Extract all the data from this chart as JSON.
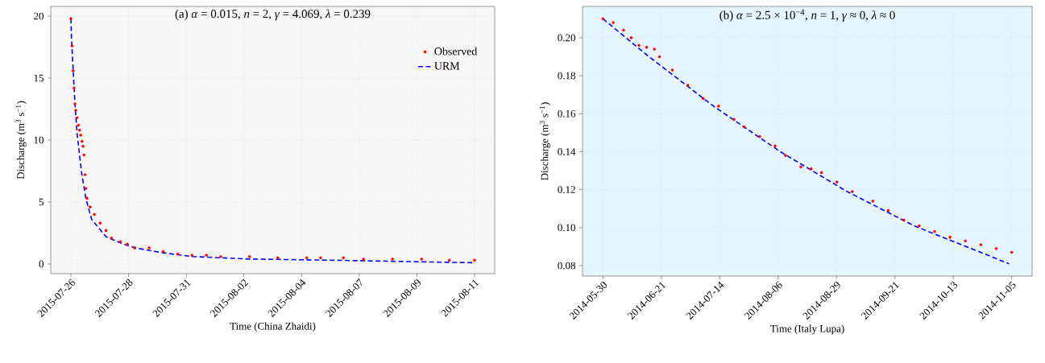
{
  "chart_data": [
    {
      "type": "line",
      "title": "(a)  *α* = 0.015, *n* = 2, *γ* = 4.069, *λ* = 0.239",
      "xlabel": "Time (China Zhaidi)",
      "ylabel": "Discharge (m$^{3}$ s$^{−1}$)",
      "xlim": [
        "2015-07-25T07:48",
        "2015-08-11T22:12"
      ],
      "ylim": [
        -0.78,
        20.78
      ],
      "xticks": [
        {
          "value": "2015-07-26T03:00",
          "label": "2015-07-26"
        },
        {
          "value": "2015-07-28T09:51",
          "label": "2015-07-28"
        },
        {
          "value": "2015-07-30T16:43",
          "label": "2015-07-31"
        },
        {
          "value": "2015-08-01T23:34",
          "label": "2015-08-02"
        },
        {
          "value": "2015-08-04T06:26",
          "label": "2015-08-04"
        },
        {
          "value": "2015-08-06T13:17",
          "label": "2015-08-07"
        },
        {
          "value": "2015-08-08T20:09",
          "label": "2015-08-09"
        },
        {
          "value": "2015-08-11T03:00",
          "label": "2015-08-11"
        }
      ],
      "yticks": [
        0,
        5,
        10,
        15,
        20
      ],
      "grid": true,
      "legend": "top right",
      "series": [
        {
          "name": "Observed",
          "type": "scatter",
          "marker": "circle",
          "color": "#ff0000",
          "x": [
            "2015-07-26T03:00",
            "2015-07-26T04:05",
            "2015-07-26T05:10",
            "2015-07-26T06:00",
            "2015-07-26T06:50",
            "2015-07-26T07:34",
            "2015-07-26T08:46",
            "2015-07-26T10:12",
            "2015-07-26T11:10",
            "2015-07-26T12:22",
            "2015-07-26T13:34",
            "2015-07-26T14:31",
            "2015-07-26T15:29",
            "2015-07-26T16:26",
            "2015-07-26T17:10",
            "2015-07-26T18:22",
            "2015-07-26T21:14",
            "2015-07-27T01:19",
            "2015-07-27T06:50",
            "2015-07-27T12:22",
            "2015-07-27T17:38",
            "2015-07-28T02:02",
            "2015-07-28T08:46",
            "2015-07-28T15:43",
            "2015-07-29T05:24",
            "2015-07-29T18:50",
            "2015-07-30T08:46",
            "2015-07-30T22:12",
            "2015-07-31T11:54",
            "2015-08-01T01:36",
            "2015-08-02T04:54",
            "2015-08-03T07:48",
            "2015-08-04T11:24",
            "2015-08-05T00:36",
            "2015-08-05T22:12",
            "2015-08-06T17:24",
            "2015-08-07T21:00",
            "2015-08-09T00:36",
            "2015-08-10T03:00",
            "2015-08-11T03:00"
          ],
          "values": [
            19.8,
            17.6,
            15.6,
            14.2,
            12.9,
            12.4,
            11.8,
            11.2,
            10.8,
            10.4,
            9.9,
            9.5,
            8.8,
            7.2,
            6.1,
            5.3,
            4.6,
            4.0,
            3.3,
            2.7,
            2.1,
            1.8,
            1.6,
            1.3,
            1.3,
            1.0,
            0.8,
            0.7,
            0.7,
            0.6,
            0.6,
            0.5,
            0.5,
            0.5,
            0.5,
            0.4,
            0.4,
            0.4,
            0.3,
            0.3
          ]
        },
        {
          "name": "URM",
          "type": "line",
          "line_style": "dashed",
          "color": "#0000ff",
          "x": [
            "2015-07-26T03:00",
            "2015-07-26T03:29",
            "2015-07-26T04:55",
            "2015-07-26T06:22",
            "2015-07-26T07:34",
            "2015-07-26T09:00",
            "2015-07-26T13:05",
            "2015-07-26T17:10",
            "2015-07-26T22:41",
            "2015-07-27T12:22",
            "2015-07-28T02:02",
            "2015-07-28T15:43",
            "2015-07-29T18:50",
            "2015-07-30T22:12",
            "2015-08-02T04:55",
            "2015-08-05T15:00",
            "2015-08-11T03:00"
          ],
          "values": [
            19.8,
            18.3,
            16.0,
            13.6,
            12.0,
            10.4,
            7.4,
            5.3,
            3.6,
            2.2,
            1.7,
            1.3,
            0.9,
            0.6,
            0.4,
            0.3,
            0.1
          ]
        }
      ]
    },
    {
      "type": "line",
      "title": "(b)  *α* = 2.5 × 10$^{−4}$, *n* = 1, *γ* ≈ 0, *λ* ≈ 0",
      "xlabel": "Time (Italy Lupa)",
      "ylabel": "Discharge (m$^{3}$ s$^{−1}$)",
      "xlim": [
        "2014-05-22T01:12",
        "2014-11-12T22:48"
      ],
      "ylim": [
        0.0745,
        0.2165
      ],
      "xticks": [
        {
          "value": "2014-05-30T00:00",
          "label": "2014-05-30"
        },
        {
          "value": "2014-06-21T17:09",
          "label": "2014-06-21"
        },
        {
          "value": "2014-07-14T10:17",
          "label": "2014-07-14"
        },
        {
          "value": "2014-08-06T03:26",
          "label": "2014-08-06"
        },
        {
          "value": "2014-08-28T20:34",
          "label": "2014-08-29"
        },
        {
          "value": "2014-09-20T13:43",
          "label": "2014-09-21"
        },
        {
          "value": "2014-10-13T06:51",
          "label": "2014-10-13"
        },
        {
          "value": "2014-11-05T00:00",
          "label": "2014-11-05"
        }
      ],
      "yticks": [
        {
          "value": 0.08,
          "label": "0.08"
        },
        {
          "value": 0.1,
          "label": "0.10"
        },
        {
          "value": 0.12,
          "label": "0.12"
        },
        {
          "value": 0.14,
          "label": "0.14"
        },
        {
          "value": 0.16,
          "label": "0.16"
        },
        {
          "value": 0.18,
          "label": "0.18"
        },
        {
          "value": 0.2,
          "label": "0.20"
        }
      ],
      "grid": true,
      "series": [
        {
          "type": "scatter",
          "marker": "circle",
          "color": "#ff0000",
          "x": [
            "2014-05-30",
            "2014-06-03",
            "2014-06-07",
            "2014-06-10",
            "2014-06-13",
            "2014-06-16",
            "2014-06-19",
            "2014-06-21",
            "2014-06-26",
            "2014-07-02",
            "2014-07-08",
            "2014-07-14",
            "2014-07-20",
            "2014-07-24",
            "2014-07-30",
            "2014-08-05",
            "2014-08-09",
            "2014-08-15",
            "2014-08-19",
            "2014-08-23",
            "2014-08-29",
            "2014-09-04",
            "2014-09-12",
            "2014-09-18",
            "2014-09-24",
            "2014-09-30",
            "2014-10-06",
            "2014-10-12",
            "2014-10-18",
            "2014-10-24",
            "2014-10-30",
            "2014-11-05"
          ],
          "values": [
            0.21,
            0.208,
            0.204,
            0.2,
            0.196,
            0.195,
            0.194,
            0.19,
            0.183,
            0.175,
            0.168,
            0.164,
            0.157,
            0.153,
            0.148,
            0.143,
            0.138,
            0.132,
            0.131,
            0.129,
            0.124,
            0.119,
            0.114,
            0.109,
            0.104,
            0.101,
            0.098,
            0.095,
            0.093,
            0.091,
            0.089,
            0.087
          ]
        },
        {
          "type": "line",
          "line_style": "dashed",
          "color": "#0000ff",
          "x": [
            "2014-05-30",
            "2014-06-16",
            "2014-07-12",
            "2014-08-07",
            "2014-09-02",
            "2014-09-28",
            "2014-11-04"
          ],
          "values": [
            0.21,
            0.191,
            0.164,
            0.14,
            0.119,
            0.101,
            0.081
          ]
        }
      ]
    }
  ]
}
